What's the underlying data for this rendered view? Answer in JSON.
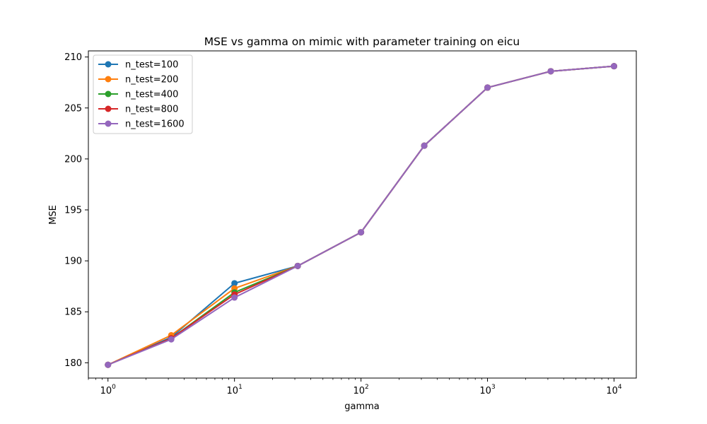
{
  "chart_data": {
    "type": "line",
    "title": "MSE vs gamma on mimic with parameter training on eicu",
    "xlabel": "gamma",
    "ylabel": "MSE",
    "xscale": "log",
    "xlim": [
      0.7,
      15000
    ],
    "ylim": [
      178.5,
      210.6
    ],
    "x": [
      1,
      3.1623,
      10,
      31.623,
      100,
      316.23,
      1000,
      3162.3,
      10000
    ],
    "x_ticks": [
      {
        "value": 1,
        "base": "10",
        "exp": "0"
      },
      {
        "value": 10,
        "base": "10",
        "exp": "1"
      },
      {
        "value": 100,
        "base": "10",
        "exp": "2"
      },
      {
        "value": 1000,
        "base": "10",
        "exp": "3"
      },
      {
        "value": 10000,
        "base": "10",
        "exp": "4"
      }
    ],
    "y_ticks": [
      180,
      185,
      190,
      195,
      200,
      205,
      210
    ],
    "grid": false,
    "legend_position": "top-left",
    "series": [
      {
        "name": "n_test=100",
        "color": "#1f77b4",
        "values": [
          179.8,
          182.5,
          187.8,
          189.5,
          192.8,
          201.3,
          207.0,
          208.6,
          209.1
        ]
      },
      {
        "name": "n_test=200",
        "color": "#ff7f0e",
        "values": [
          179.8,
          182.7,
          187.3,
          189.5,
          192.8,
          201.3,
          207.0,
          208.6,
          209.1
        ]
      },
      {
        "name": "n_test=400",
        "color": "#2ca02c",
        "values": [
          179.8,
          182.4,
          186.9,
          189.5,
          192.8,
          201.3,
          207.0,
          208.6,
          209.1
        ]
      },
      {
        "name": "n_test=800",
        "color": "#d62728",
        "values": [
          179.8,
          182.4,
          186.7,
          189.5,
          192.8,
          201.3,
          207.0,
          208.6,
          209.1
        ]
      },
      {
        "name": "n_test=1600",
        "color": "#9467bd",
        "values": [
          179.8,
          182.3,
          186.4,
          189.5,
          192.8,
          201.3,
          207.0,
          208.6,
          209.1
        ]
      }
    ]
  }
}
